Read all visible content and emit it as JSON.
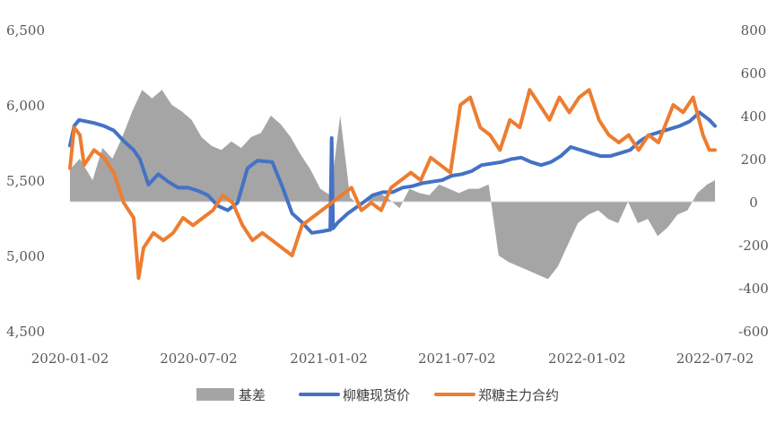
{
  "chart_data": {
    "type": "line",
    "x_range": [
      "2020-01-02",
      "2022-07-02"
    ],
    "x_tick_labels": [
      "2020-01-02",
      "2020-07-02",
      "2021-01-02",
      "2021-07-02",
      "2022-01-02",
      "2022-07-02"
    ],
    "x_ticks": [
      "2020-01-02",
      "2020-07-02",
      "2021-01-02",
      "2021-07-02",
      "2022-01-02",
      "2022-07-02"
    ],
    "ylim_left": [
      4500,
      6500
    ],
    "y_tick_labels_left": [
      "6,500",
      "6,000",
      "5,500",
      "5,000",
      "4,500"
    ],
    "ylim_right": [
      -600,
      800
    ],
    "y_tick_labels_right": [
      "800",
      "600",
      "400",
      "200",
      "0",
      "-200",
      "-400",
      "-600"
    ],
    "grid": false,
    "legend_position": "bottom",
    "series": [
      {
        "name": "基差",
        "type": "area",
        "axis": "right",
        "color": "#A5A5A5",
        "x": [
          "2020-01-02",
          "2020-01-16",
          "2020-02-03",
          "2020-02-17",
          "2020-03-02",
          "2020-03-16",
          "2020-03-30",
          "2020-04-13",
          "2020-04-27",
          "2020-05-11",
          "2020-05-25",
          "2020-06-08",
          "2020-06-22",
          "2020-07-06",
          "2020-07-20",
          "2020-08-03",
          "2020-08-17",
          "2020-08-31",
          "2020-09-14",
          "2020-09-28",
          "2020-10-12",
          "2020-10-26",
          "2020-11-09",
          "2020-11-23",
          "2020-12-07",
          "2020-12-21",
          "2021-01-04",
          "2021-01-18",
          "2021-02-01",
          "2021-02-15",
          "2021-03-01",
          "2021-03-15",
          "2021-03-29",
          "2021-04-12",
          "2021-04-26",
          "2021-05-10",
          "2021-05-24",
          "2021-06-07",
          "2021-06-21",
          "2021-07-05",
          "2021-07-19",
          "2021-08-02",
          "2021-08-16",
          "2021-08-30",
          "2021-09-13",
          "2021-09-27",
          "2021-10-11",
          "2021-10-25",
          "2021-11-08",
          "2021-11-22",
          "2021-12-06",
          "2021-12-20",
          "2022-01-04",
          "2022-01-18",
          "2022-02-01",
          "2022-02-15",
          "2022-03-01",
          "2022-03-15",
          "2022-03-29",
          "2022-04-12",
          "2022-04-26",
          "2022-05-10",
          "2022-05-24",
          "2022-06-07",
          "2022-06-21",
          "2022-07-02"
        ],
        "values": [
          150,
          200,
          100,
          250,
          200,
          300,
          420,
          520,
          480,
          520,
          450,
          420,
          380,
          300,
          260,
          240,
          280,
          250,
          300,
          320,
          400,
          360,
          300,
          220,
          150,
          60,
          30,
          400,
          20,
          -20,
          20,
          40,
          10,
          -30,
          60,
          40,
          30,
          80,
          60,
          40,
          60,
          60,
          80,
          -250,
          -280,
          -300,
          -320,
          -340,
          -360,
          -300,
          -200,
          -100,
          -60,
          -40,
          -80,
          -100,
          0,
          -100,
          -80,
          -160,
          -120,
          -60,
          -40,
          40,
          80,
          100
        ]
      },
      {
        "name": "柳糖现货价",
        "type": "line",
        "axis": "left",
        "color": "#4472C4",
        "x": [
          "2020-01-02",
          "2020-01-08",
          "2020-01-15",
          "2020-02-05",
          "2020-02-19",
          "2020-03-04",
          "2020-03-18",
          "2020-04-01",
          "2020-04-10",
          "2020-04-22",
          "2020-05-06",
          "2020-05-20",
          "2020-06-03",
          "2020-06-17",
          "2020-07-01",
          "2020-07-15",
          "2020-07-29",
          "2020-08-12",
          "2020-08-26",
          "2020-09-09",
          "2020-09-23",
          "2020-10-14",
          "2020-10-28",
          "2020-11-11",
          "2020-11-25",
          "2020-12-09",
          "2020-12-23",
          "2021-01-04",
          "2021-01-06",
          "2021-01-08",
          "2021-01-15",
          "2021-01-29",
          "2021-02-19",
          "2021-03-05",
          "2021-03-19",
          "2021-04-02",
          "2021-04-16",
          "2021-04-30",
          "2021-05-14",
          "2021-05-28",
          "2021-06-11",
          "2021-06-25",
          "2021-07-09",
          "2021-07-23",
          "2021-08-06",
          "2021-08-20",
          "2021-09-03",
          "2021-09-17",
          "2021-10-01",
          "2021-10-15",
          "2021-10-29",
          "2021-11-12",
          "2021-11-26",
          "2021-12-10",
          "2021-12-24",
          "2022-01-07",
          "2022-01-21",
          "2022-02-04",
          "2022-02-18",
          "2022-03-04",
          "2022-03-18",
          "2022-04-01",
          "2022-04-15",
          "2022-04-29",
          "2022-05-13",
          "2022-05-27",
          "2022-06-10",
          "2022-06-24",
          "2022-07-02"
        ],
        "values": [
          5730,
          5860,
          5900,
          5880,
          5860,
          5830,
          5760,
          5700,
          5640,
          5470,
          5540,
          5490,
          5450,
          5450,
          5430,
          5400,
          5330,
          5300,
          5350,
          5580,
          5630,
          5620,
          5460,
          5280,
          5220,
          5150,
          5160,
          5170,
          5780,
          5180,
          5220,
          5280,
          5350,
          5400,
          5420,
          5420,
          5450,
          5460,
          5480,
          5490,
          5500,
          5530,
          5540,
          5560,
          5600,
          5610,
          5620,
          5640,
          5650,
          5620,
          5600,
          5620,
          5660,
          5720,
          5700,
          5680,
          5660,
          5660,
          5680,
          5700,
          5760,
          5800,
          5820,
          5840,
          5860,
          5890,
          5950,
          5900,
          5860
        ]
      },
      {
        "name": "郑糖主力合约",
        "type": "line",
        "axis": "left",
        "color": "#ED7D31",
        "x": [
          "2020-01-02",
          "2020-01-08",
          "2020-01-16",
          "2020-01-22",
          "2020-02-05",
          "2020-02-19",
          "2020-03-04",
          "2020-03-18",
          "2020-04-01",
          "2020-04-08",
          "2020-04-15",
          "2020-04-29",
          "2020-05-13",
          "2020-05-27",
          "2020-06-10",
          "2020-06-24",
          "2020-07-08",
          "2020-07-22",
          "2020-08-05",
          "2020-08-19",
          "2020-09-02",
          "2020-09-16",
          "2020-09-30",
          "2020-10-14",
          "2020-10-28",
          "2020-11-11",
          "2020-11-25",
          "2020-12-09",
          "2020-12-23",
          "2021-01-06",
          "2021-01-20",
          "2021-02-03",
          "2021-02-17",
          "2021-03-03",
          "2021-03-17",
          "2021-03-31",
          "2021-04-14",
          "2021-04-28",
          "2021-05-12",
          "2021-05-26",
          "2021-06-09",
          "2021-06-23",
          "2021-07-07",
          "2021-07-21",
          "2021-08-04",
          "2021-08-18",
          "2021-09-01",
          "2021-09-15",
          "2021-09-29",
          "2021-10-13",
          "2021-10-27",
          "2021-11-10",
          "2021-11-24",
          "2021-12-08",
          "2021-12-22",
          "2022-01-05",
          "2022-01-19",
          "2022-02-02",
          "2022-02-16",
          "2022-03-02",
          "2022-03-16",
          "2022-03-30",
          "2022-04-13",
          "2022-05-04",
          "2022-05-18",
          "2022-06-01",
          "2022-06-15",
          "2022-06-24",
          "2022-07-02"
        ],
        "values": [
          5580,
          5850,
          5800,
          5600,
          5700,
          5650,
          5550,
          5350,
          5250,
          4850,
          5050,
          5150,
          5100,
          5150,
          5250,
          5200,
          5250,
          5300,
          5400,
          5350,
          5200,
          5100,
          5150,
          5100,
          5050,
          5000,
          5200,
          5250,
          5300,
          5350,
          5400,
          5450,
          5300,
          5350,
          5300,
          5450,
          5500,
          5550,
          5500,
          5650,
          5600,
          5550,
          6000,
          6050,
          5850,
          5800,
          5700,
          5900,
          5850,
          6100,
          6000,
          5900,
          6050,
          5950,
          6050,
          6100,
          5900,
          5800,
          5750,
          5800,
          5700,
          5800,
          5750,
          6000,
          5950,
          6050,
          5800,
          5700,
          5700
        ]
      }
    ]
  }
}
